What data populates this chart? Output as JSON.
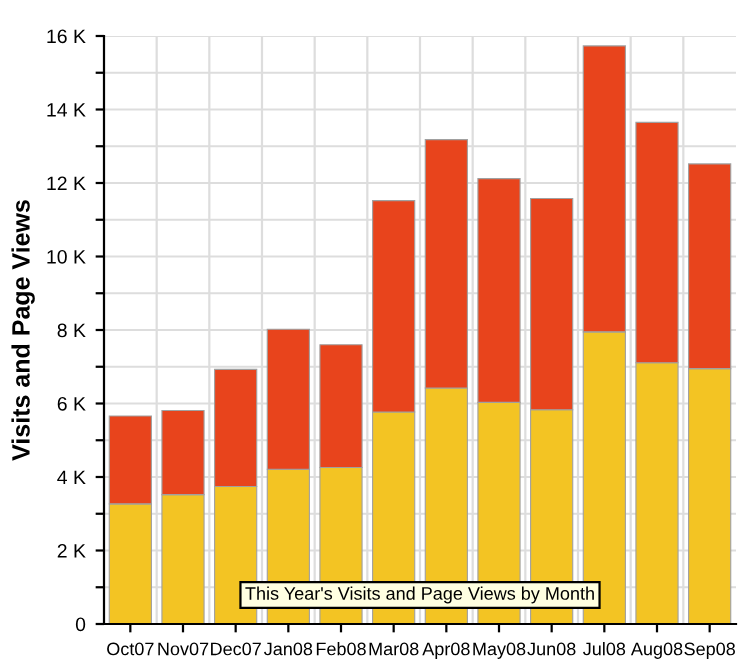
{
  "chart_data": {
    "type": "bar",
    "stacked": true,
    "ylabel": "Visits and Page Views",
    "categories": [
      "Oct07",
      "Nov07",
      "Dec07",
      "Jan08",
      "Feb08",
      "Mar08",
      "Apr08",
      "May08",
      "Jun08",
      "Jul08",
      "Aug08",
      "Sep08"
    ],
    "series": [
      {
        "color": "#f3c423",
        "values": [
          3270,
          3520,
          3740,
          4210,
          4260,
          5770,
          6420,
          6030,
          5830,
          7950,
          7110,
          6950
        ]
      },
      {
        "color": "#e8441c",
        "values": [
          2390,
          2290,
          3190,
          3810,
          3340,
          5750,
          6760,
          6090,
          5750,
          7780,
          6540,
          5570
        ]
      }
    ],
    "ylim": [
      0,
      16000
    ],
    "yticks": [
      0,
      {
        "value": 1000,
        "label": null
      },
      {
        "value": 2000,
        "label": "2 K"
      },
      {
        "value": 3000,
        "label": null
      },
      {
        "value": 4000,
        "label": "4 K"
      },
      {
        "value": 5000,
        "label": null
      },
      {
        "value": 6000,
        "label": "6 K"
      },
      {
        "value": 7000,
        "label": null
      },
      {
        "value": 8000,
        "label": "8 K"
      },
      {
        "value": 9000,
        "label": null
      },
      {
        "value": 10000,
        "label": "10 K"
      },
      {
        "value": 11000,
        "label": null
      },
      {
        "value": 12000,
        "label": "12 K"
      },
      {
        "value": 13000,
        "label": null
      },
      {
        "value": 14000,
        "label": "14 K"
      },
      {
        "value": 15000,
        "label": null
      },
      {
        "value": 16000,
        "label": "16 K"
      }
    ],
    "grid": true,
    "annotations": [
      "This Year's Visits and Page Views by Month"
    ]
  }
}
